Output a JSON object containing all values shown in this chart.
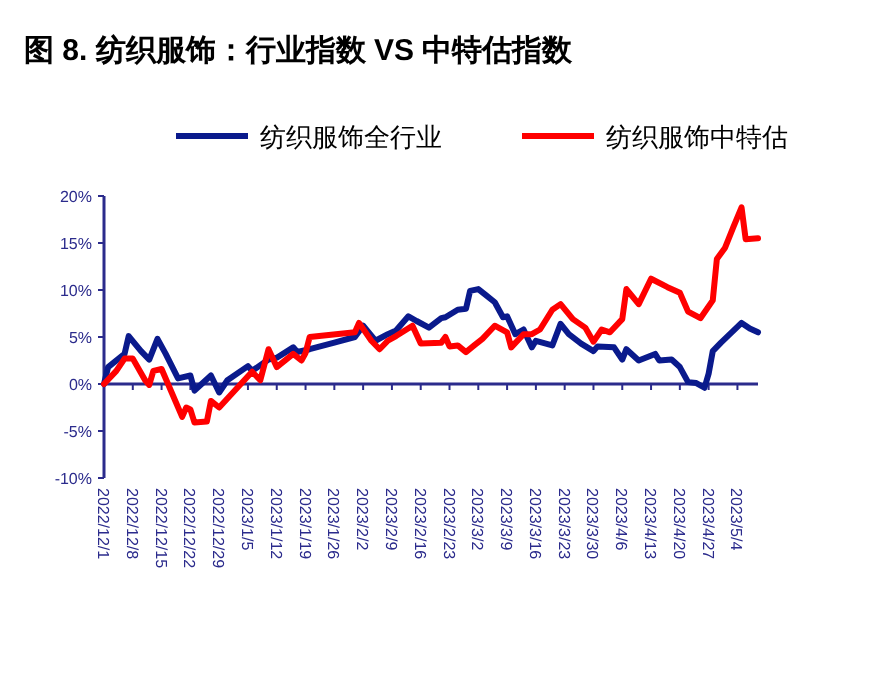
{
  "chart_data": {
    "type": "line",
    "title": "图 8. 纺织服饰：行业指数 VS 中特估指数",
    "legend": "top",
    "grid": false,
    "line_style": "solid",
    "marker": "none",
    "xlim": [
      "2022-12-01",
      "2023-05-09"
    ],
    "xticks": [
      {
        "value": "2022-12-01",
        "label": "2022/12/1"
      },
      {
        "value": "2022-12-08",
        "label": "2022/12/8"
      },
      {
        "value": "2022-12-15",
        "label": "2022/12/15"
      },
      {
        "value": "2022-12-22",
        "label": "2022/12/22"
      },
      {
        "value": "2022-12-29",
        "label": "2022/12/29"
      },
      {
        "value": "2023-01-05",
        "label": "2023/1/5"
      },
      {
        "value": "2023-01-12",
        "label": "2023/1/12"
      },
      {
        "value": "2023-01-19",
        "label": "2023/1/19"
      },
      {
        "value": "2023-01-26",
        "label": "2023/1/26"
      },
      {
        "value": "2023-02-02",
        "label": "2023/2/2"
      },
      {
        "value": "2023-02-09",
        "label": "2023/2/9"
      },
      {
        "value": "2023-02-16",
        "label": "2023/2/16"
      },
      {
        "value": "2023-02-23",
        "label": "2023/2/23"
      },
      {
        "value": "2023-03-02",
        "label": "2023/3/2"
      },
      {
        "value": "2023-03-09",
        "label": "2023/3/9"
      },
      {
        "value": "2023-03-16",
        "label": "2023/3/16"
      },
      {
        "value": "2023-03-23",
        "label": "2023/3/23"
      },
      {
        "value": "2023-03-30",
        "label": "2023/3/30"
      },
      {
        "value": "2023-04-06",
        "label": "2023/4/6"
      },
      {
        "value": "2023-04-13",
        "label": "2023/4/13"
      },
      {
        "value": "2023-04-20",
        "label": "2023/4/20"
      },
      {
        "value": "2023-04-27",
        "label": "2023/4/27"
      },
      {
        "value": "2023-05-04",
        "label": "2023/5/4"
      }
    ],
    "ylim": [
      -10,
      20
    ],
    "ref_lines": [
      {
        "axis": "y",
        "value": 0,
        "color": "#2b2b8c"
      }
    ],
    "yticks": [
      {
        "value": -10,
        "label": "-10%"
      },
      {
        "value": -5,
        "label": "-5%"
      },
      {
        "value": 0,
        "label": "0%"
      },
      {
        "value": 5,
        "label": "5%"
      },
      {
        "value": 10,
        "label": "10%"
      },
      {
        "value": 15,
        "label": "15%"
      },
      {
        "value": 20,
        "label": "20%"
      }
    ],
    "series": [
      {
        "name": "纺织服饰全行业",
        "color": "#0a1a8c",
        "x": [
          "2022-12-01",
          "2022-12-02",
          "2022-12-06",
          "2022-12-07",
          "2022-12-10",
          "2022-12-12",
          "2022-12-14",
          "2022-12-16",
          "2022-12-19",
          "2022-12-22",
          "2022-12-23",
          "2022-12-27",
          "2022-12-29",
          "2022-12-31",
          "2023-01-05",
          "2023-01-06",
          "2023-01-10",
          "2023-01-12",
          "2023-01-16",
          "2023-01-17",
          "2023-01-20",
          "2023-01-26",
          "2023-01-31",
          "2023-02-02",
          "2023-02-05",
          "2023-02-08",
          "2023-02-10",
          "2023-02-13",
          "2023-02-15",
          "2023-02-18",
          "2023-02-21",
          "2023-02-22",
          "2023-02-25",
          "2023-02-27",
          "2023-02-28",
          "2023-03-02",
          "2023-03-04",
          "2023-03-06",
          "2023-03-08",
          "2023-03-09",
          "2023-03-11",
          "2023-03-13",
          "2023-03-15",
          "2023-03-16",
          "2023-03-20",
          "2023-03-22",
          "2023-03-24",
          "2023-03-27",
          "2023-03-30",
          "2023-03-31",
          "2023-04-04",
          "2023-04-06",
          "2023-04-07",
          "2023-04-10",
          "2023-04-14",
          "2023-04-15",
          "2023-04-18",
          "2023-04-20",
          "2023-04-22",
          "2023-04-24",
          "2023-04-26",
          "2023-04-27",
          "2023-04-28",
          "2023-04-30",
          "2023-05-05",
          "2023-05-07",
          "2023-05-09"
        ],
        "values": [
          0,
          1.8,
          3.2,
          5.1,
          3.5,
          2.6,
          4.8,
          3.2,
          0.6,
          0.9,
          -0.7,
          0.9,
          -0.9,
          0.4,
          1.9,
          1.4,
          2.6,
          2.8,
          3.9,
          3.4,
          3.7,
          4.4,
          5.0,
          6.2,
          4.6,
          5.3,
          5.7,
          7.2,
          6.7,
          6.0,
          7.0,
          7.1,
          7.9,
          8.0,
          9.9,
          10.1,
          9.4,
          8.7,
          7.1,
          7.2,
          5.3,
          5.8,
          3.9,
          4.6,
          4.1,
          6.4,
          5.3,
          4.3,
          3.5,
          4.0,
          3.9,
          2.6,
          3.7,
          2.5,
          3.2,
          2.5,
          2.6,
          1.8,
          0.2,
          0.1,
          -0.4,
          1.1,
          3.5,
          4.4,
          6.5,
          5.9,
          5.5
        ]
      },
      {
        "name": "纺织服饰中特估",
        "color": "#ff0000",
        "x": [
          "2022-12-01",
          "2022-12-04",
          "2022-12-06",
          "2022-12-08",
          "2022-12-11",
          "2022-12-12",
          "2022-12-13",
          "2022-12-15",
          "2022-12-20",
          "2022-12-21",
          "2022-12-22",
          "2022-12-23",
          "2022-12-26",
          "2022-12-27",
          "2022-12-29",
          "2023-01-06",
          "2023-01-08",
          "2023-01-10",
          "2023-01-12",
          "2023-01-16",
          "2023-01-18",
          "2023-01-19",
          "2023-01-20",
          "2023-01-31",
          "2023-02-01",
          "2023-02-04",
          "2023-02-06",
          "2023-02-08",
          "2023-02-10",
          "2023-02-14",
          "2023-02-16",
          "2023-02-21",
          "2023-02-22",
          "2023-02-23",
          "2023-02-25",
          "2023-02-27",
          "2023-03-01",
          "2023-03-03",
          "2023-03-06",
          "2023-03-09",
          "2023-03-10",
          "2023-03-13",
          "2023-03-15",
          "2023-03-17",
          "2023-03-20",
          "2023-03-22",
          "2023-03-25",
          "2023-03-28",
          "2023-03-30",
          "2023-04-01",
          "2023-04-03",
          "2023-04-06",
          "2023-04-07",
          "2023-04-10",
          "2023-04-13",
          "2023-04-17",
          "2023-04-20",
          "2023-04-22",
          "2023-04-25",
          "2023-04-28",
          "2023-04-29",
          "2023-05-01",
          "2023-05-03",
          "2023-05-05",
          "2023-05-06",
          "2023-05-09"
        ],
        "values": [
          0,
          1.4,
          2.7,
          2.7,
          0.4,
          -0.1,
          1.4,
          1.6,
          -3.5,
          -2.5,
          -2.7,
          -4.1,
          -4.0,
          -1.8,
          -2.5,
          1.3,
          0.4,
          3.7,
          1.8,
          3.2,
          2.5,
          3.3,
          5.0,
          5.5,
          6.5,
          4.6,
          3.7,
          4.6,
          5.1,
          6.2,
          4.3,
          4.4,
          5.0,
          4.0,
          4.1,
          3.4,
          4.1,
          4.8,
          6.2,
          5.5,
          3.9,
          5.3,
          5.3,
          5.8,
          7.9,
          8.5,
          6.9,
          6.0,
          4.5,
          5.8,
          5.5,
          6.9,
          10.1,
          8.5,
          11.2,
          10.3,
          9.7,
          7.7,
          7.0,
          8.9,
          13.3,
          14.5,
          16.7,
          18.8,
          15.4,
          15.5
        ]
      }
    ]
  }
}
